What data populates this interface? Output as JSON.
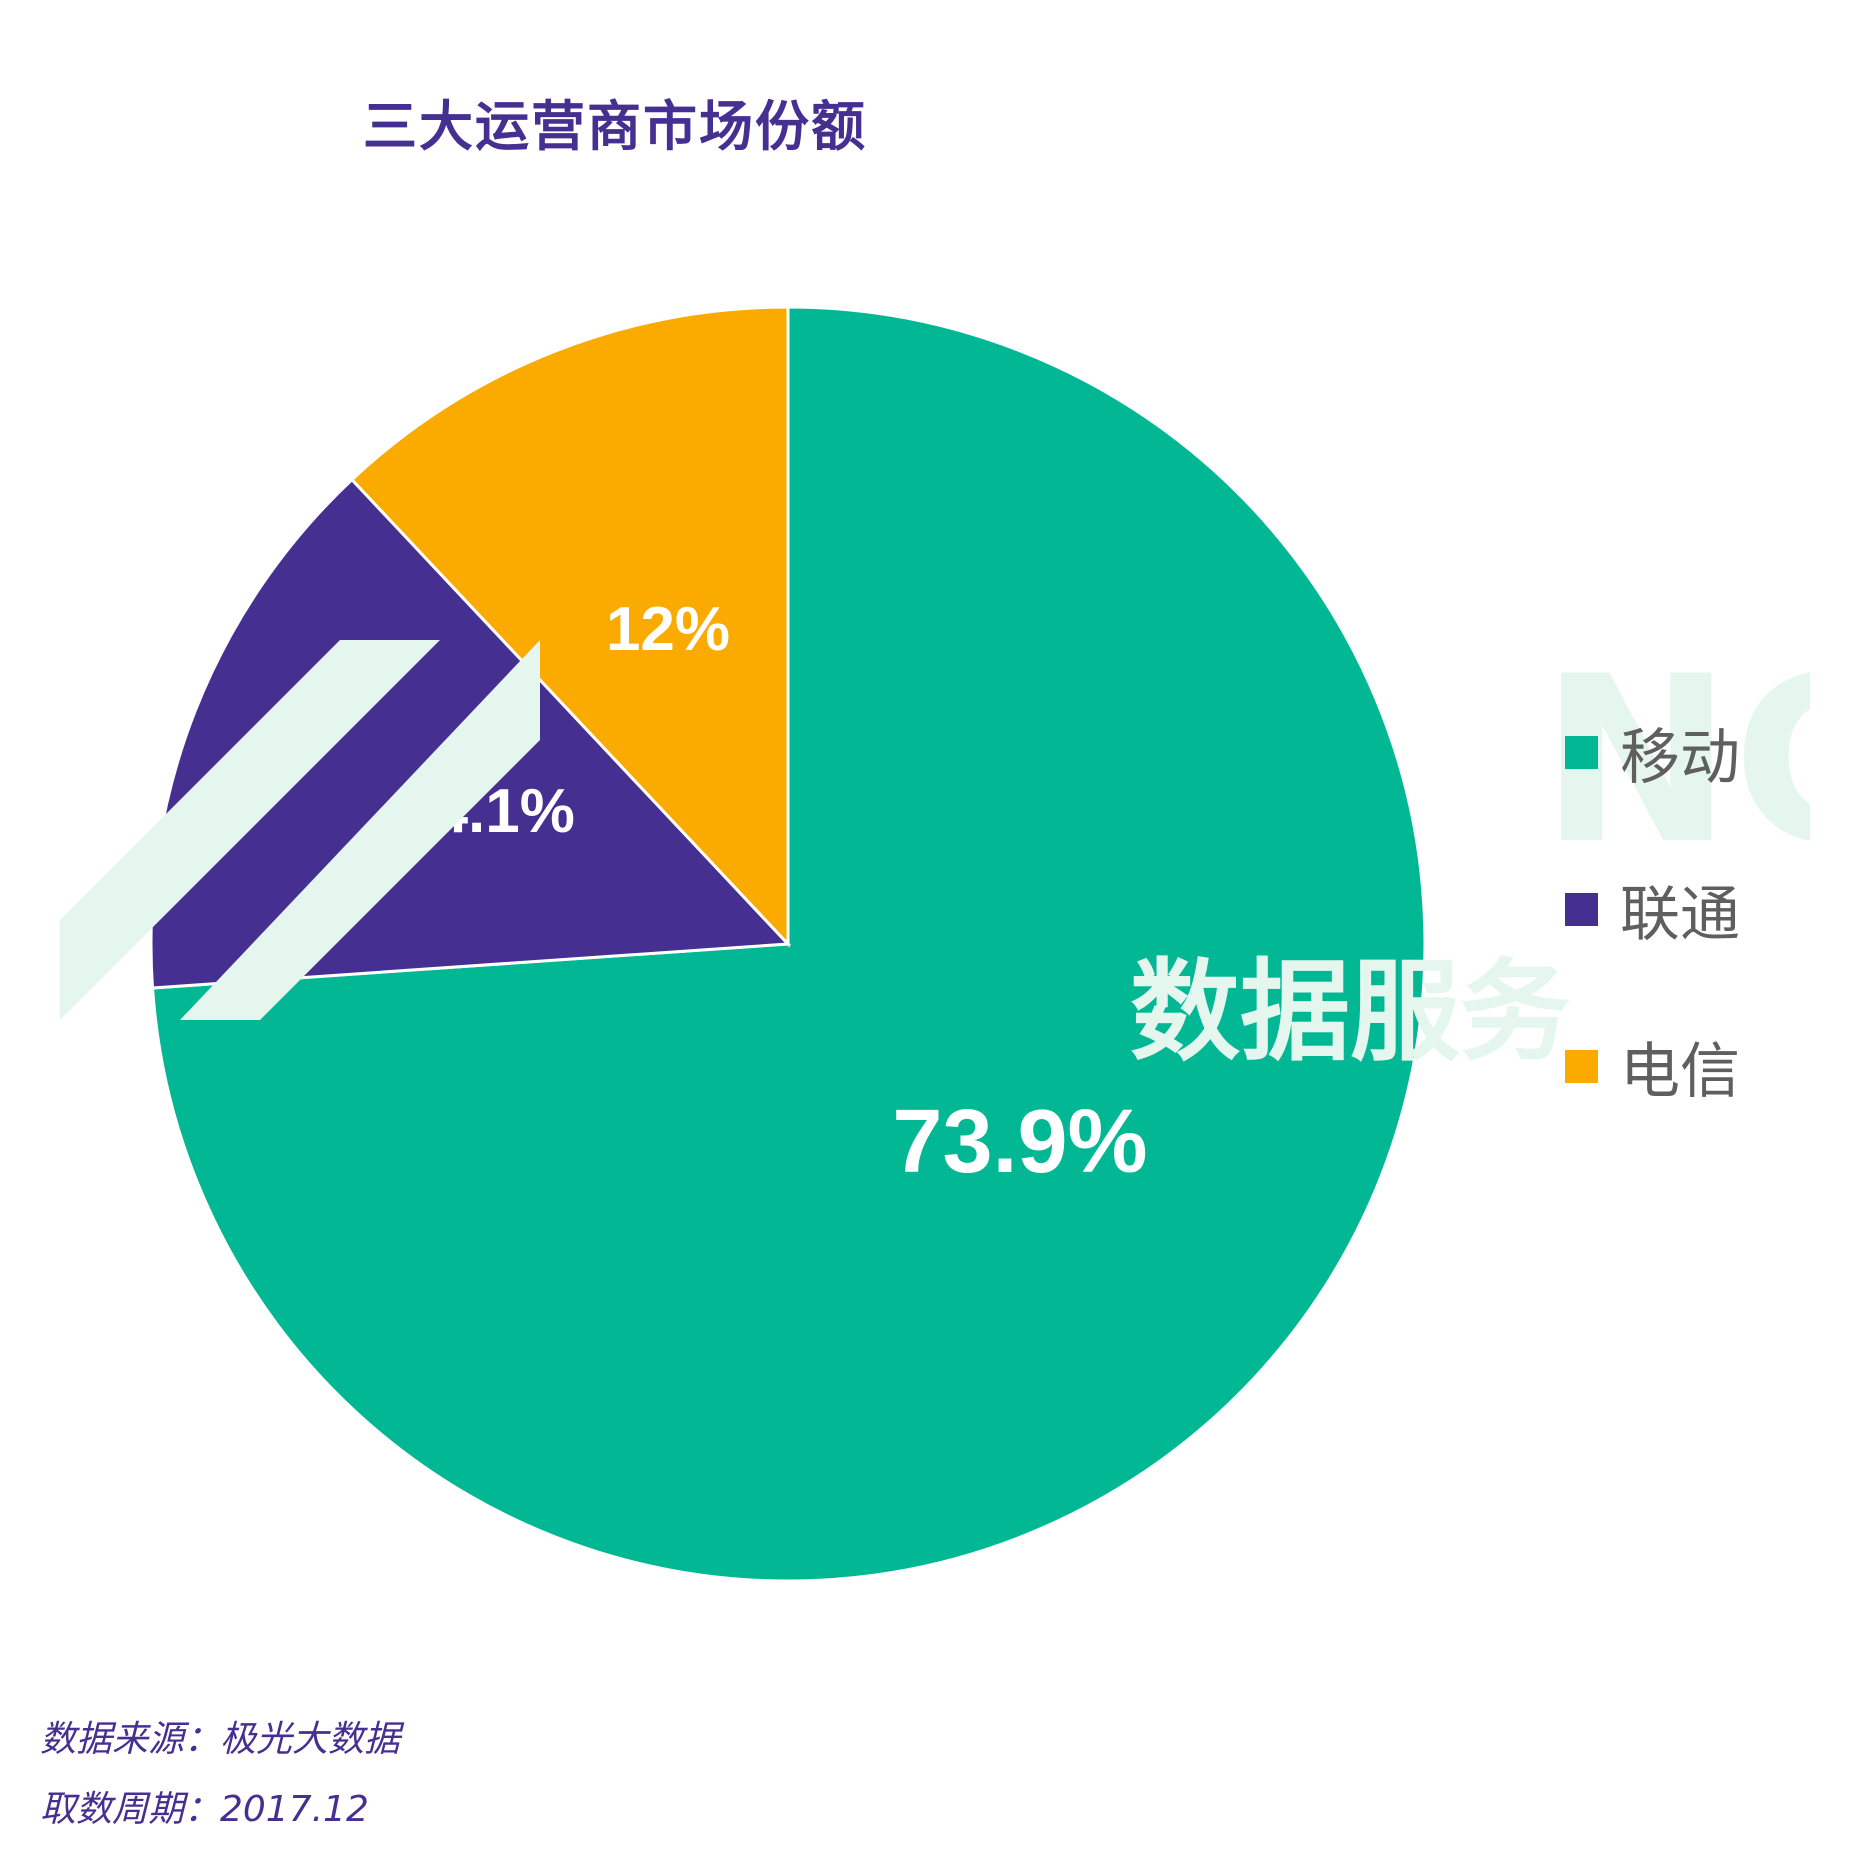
{
  "chart_data": {
    "type": "pie",
    "title": "三大运营商市场份额",
    "slices": [
      {
        "name": "移动",
        "value": 73.9,
        "label": "73.9%",
        "color": "#02b894"
      },
      {
        "name": "联通",
        "value": 14.1,
        "label": "14.1%",
        "color": "#452f91"
      },
      {
        "name": "电信",
        "value": 12.0,
        "label": "12%",
        "color": "#fbab00"
      }
    ],
    "start_direction": "12 o'clock",
    "direction": "clockwise",
    "legend_placement": "right"
  },
  "colors": {
    "title": "#452f91",
    "footer": "#452f91",
    "legend_text": "#5f5f5f",
    "slice_label": "#ffffff"
  },
  "watermark": {
    "text_latin": "NG",
    "text_cn": "数据服务"
  },
  "footer": {
    "source": "数据来源：极光大数据",
    "period": "取数周期：2017.12"
  }
}
